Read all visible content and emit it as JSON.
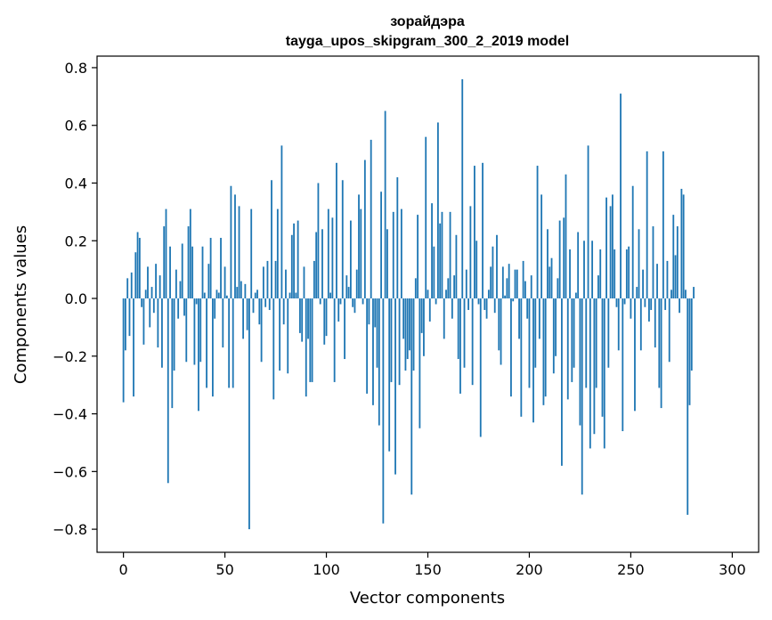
{
  "chart_data": {
    "type": "bar",
    "title": "зорайдэра",
    "subtitle": "tayga_upos_skipgram_300_2_2019 model",
    "xlabel": "Vector components",
    "ylabel": "Components values",
    "xlim": [
      -13,
      313
    ],
    "ylim": [
      -0.88,
      0.84
    ],
    "xticks": [
      0,
      50,
      100,
      150,
      200,
      250,
      300
    ],
    "xtick_labels": [
      "0",
      "50",
      "100",
      "150",
      "200",
      "250",
      "300"
    ],
    "yticks": [
      -0.8,
      -0.6,
      -0.4,
      -0.2,
      0.0,
      0.2,
      0.4,
      0.6,
      0.8
    ],
    "ytick_labels": [
      "−0.8",
      "−0.6",
      "−0.4",
      "−0.2",
      "0.0",
      "0.2",
      "0.4",
      "0.6",
      "0.8"
    ],
    "bar_color": "#1f77b4",
    "grid": false,
    "values": [
      -0.36,
      -0.18,
      0.07,
      -0.13,
      0.09,
      -0.34,
      0.16,
      0.23,
      0.21,
      -0.03,
      -0.16,
      0.03,
      0.11,
      -0.1,
      0.04,
      -0.05,
      0.12,
      -0.17,
      0.08,
      -0.24,
      0.25,
      0.31,
      -0.64,
      0.18,
      -0.38,
      -0.25,
      0.1,
      -0.07,
      0.06,
      0.19,
      -0.06,
      -0.22,
      0.25,
      0.31,
      0.18,
      -0.23,
      -0.02,
      -0.39,
      -0.22,
      0.18,
      0.02,
      -0.31,
      0.12,
      0.21,
      -0.34,
      -0.07,
      0.03,
      0.02,
      0.21,
      -0.17,
      0.11,
      0.01,
      -0.31,
      0.39,
      -0.31,
      0.36,
      0.04,
      0.32,
      0.06,
      -0.14,
      0.05,
      -0.11,
      -0.8,
      0.31,
      -0.05,
      0.02,
      0.03,
      -0.09,
      -0.22,
      0.11,
      -0.03,
      0.13,
      -0.04,
      0.41,
      -0.35,
      0.13,
      0.31,
      -0.25,
      0.53,
      -0.09,
      0.1,
      -0.26,
      0.02,
      0.22,
      0.26,
      0.02,
      0.27,
      -0.12,
      -0.15,
      0.11,
      -0.34,
      -0.14,
      -0.29,
      -0.29,
      0.13,
      0.23,
      0.4,
      -0.02,
      0.24,
      -0.16,
      -0.13,
      0.31,
      0.02,
      0.28,
      -0.29,
      0.47,
      -0.08,
      -0.02,
      0.41,
      -0.21,
      0.08,
      0.04,
      0.27,
      -0.03,
      -0.05,
      0.1,
      0.36,
      0.31,
      -0.02,
      0.48,
      -0.33,
      -0.09,
      0.55,
      -0.37,
      -0.1,
      -0.24,
      -0.44,
      0.37,
      -0.78,
      0.65,
      0.24,
      -0.53,
      -0.29,
      0.3,
      -0.61,
      0.42,
      -0.3,
      0.31,
      -0.14,
      -0.25,
      -0.21,
      -0.18,
      -0.68,
      -0.25,
      0.07,
      0.29,
      -0.45,
      -0.12,
      -0.2,
      0.56,
      0.03,
      -0.08,
      0.33,
      0.18,
      -0.02,
      0.61,
      0.26,
      0.3,
      -0.14,
      0.03,
      0.07,
      0.3,
      -0.07,
      0.08,
      0.22,
      -0.21,
      -0.33,
      0.76,
      -0.24,
      0.1,
      -0.04,
      0.32,
      -0.3,
      0.46,
      0.2,
      -0.02,
      -0.48,
      0.47,
      -0.04,
      -0.07,
      0.03,
      0.11,
      0.18,
      -0.05,
      0.22,
      -0.18,
      -0.23,
      0.11,
      0.01,
      0.07,
      0.12,
      -0.34,
      -0.01,
      0.1,
      0.1,
      -0.14,
      -0.41,
      0.13,
      0.06,
      -0.07,
      -0.31,
      0.08,
      -0.43,
      -0.24,
      0.46,
      -0.14,
      0.36,
      -0.37,
      -0.34,
      0.24,
      0.11,
      0.14,
      -0.26,
      -0.2,
      0.07,
      0.27,
      -0.58,
      0.28,
      0.43,
      -0.35,
      0.17,
      -0.29,
      -0.24,
      0.02,
      0.23,
      -0.44,
      -0.68,
      0.2,
      -0.31,
      0.53,
      -0.52,
      0.2,
      -0.47,
      -0.31,
      0.08,
      0.17,
      -0.41,
      -0.52,
      0.35,
      -0.24,
      0.32,
      0.36,
      0.17,
      -0.03,
      -0.18,
      0.71,
      -0.46,
      -0.02,
      0.17,
      0.18,
      -0.07,
      0.39,
      -0.39,
      0.04,
      0.24,
      -0.18,
      0.1,
      -0.03,
      0.51,
      -0.08,
      -0.04,
      0.25,
      -0.17,
      0.12,
      -0.31,
      -0.38,
      0.51,
      -0.04,
      0.13,
      -0.22,
      0.03,
      0.29,
      0.15,
      0.25,
      -0.05,
      0.38,
      0.36,
      0.03,
      -0.75,
      -0.37,
      -0.25,
      0.04
    ]
  }
}
